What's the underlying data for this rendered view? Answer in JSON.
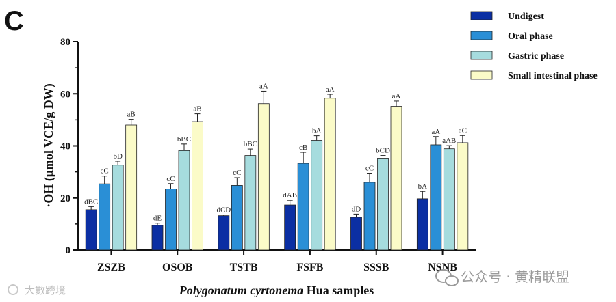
{
  "panel_label": "C",
  "chart_data": {
    "type": "bar",
    "title": "",
    "xlabel_italic": "Polygonatum cyrtonema",
    "xlabel_rest": "Hua samples",
    "ylabel": "·OH (μmol VCE/g DW)",
    "ylim": [
      0,
      80
    ],
    "yticks": [
      "0",
      "20",
      "40",
      "60",
      "80"
    ],
    "categories": [
      "ZSZB",
      "OSOB",
      "TSTB",
      "FSFB",
      "SSSB",
      "NSNB"
    ],
    "legend_position": "top-right",
    "series": [
      {
        "name": "Undigest",
        "color": "#0b2fa3",
        "values": [
          15.5,
          9.5,
          13.2,
          17.3,
          12.6,
          19.7
        ],
        "errors": [
          1.2,
          0.8,
          0.3,
          1.8,
          1.2,
          2.8
        ],
        "labels": [
          "dBC",
          "dE",
          "dCD",
          "dAB",
          "dD",
          "bA"
        ]
      },
      {
        "name": "Oral phase",
        "color": "#2a8fd6",
        "values": [
          25.4,
          23.5,
          24.8,
          33.3,
          26.0,
          40.4
        ],
        "errors": [
          3.0,
          2.0,
          3.0,
          4.2,
          3.5,
          3.2
        ],
        "labels": [
          "cC",
          "cC",
          "cC",
          "cB",
          "cC",
          "aA"
        ]
      },
      {
        "name": "Gastric phase",
        "color": "#a6dcde",
        "values": [
          32.6,
          38.2,
          36.3,
          42.1,
          35.3,
          38.9
        ],
        "errors": [
          1.5,
          2.5,
          2.5,
          1.8,
          1.0,
          1.2
        ],
        "labels": [
          "bD",
          "bBC",
          "bBC",
          "bA",
          "bCD",
          "aAB"
        ]
      },
      {
        "name": "Small intestinal phase",
        "color": "#fbfbc8",
        "values": [
          48.0,
          49.3,
          56.2,
          58.3,
          55.2,
          41.2
        ],
        "errors": [
          2.2,
          3.0,
          4.8,
          1.5,
          2.0,
          2.8
        ],
        "labels": [
          "aB",
          "aB",
          "aA",
          "aA",
          "aA",
          "aC"
        ]
      }
    ]
  },
  "watermarks": {
    "left": "大數跨境",
    "right": "公众号 · 黄精联盟"
  }
}
